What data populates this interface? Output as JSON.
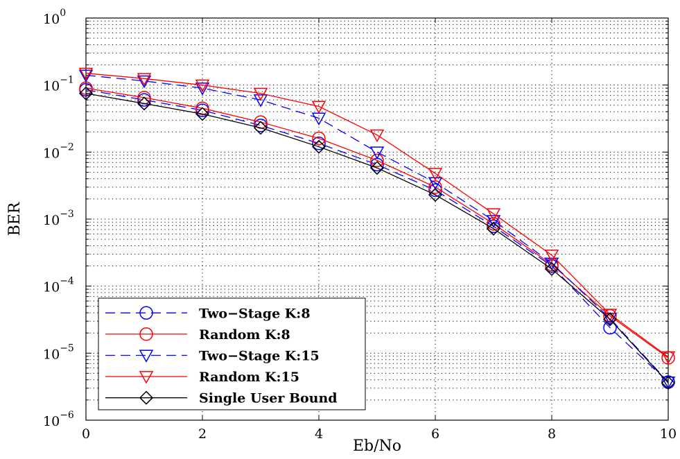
{
  "chart_data": {
    "type": "line",
    "xlabel": "Eb/No",
    "ylabel": "BER",
    "yscale": "log",
    "xlim": [
      0,
      10
    ],
    "ylim": [
      1e-06,
      1
    ],
    "x_ticks": [
      0,
      2,
      4,
      6,
      8,
      10
    ],
    "x_tick_labels": [
      "0",
      "2",
      "4",
      "6",
      "8",
      "10"
    ],
    "y_ticks": [
      {
        "value": 1,
        "base": "10",
        "exp": "0"
      },
      {
        "value": 0.1,
        "base": "10",
        "exp": "−1"
      },
      {
        "value": 0.01,
        "base": "10",
        "exp": "−2"
      },
      {
        "value": 0.001,
        "base": "10",
        "exp": "−3"
      },
      {
        "value": 0.0001,
        "base": "10",
        "exp": "−4"
      },
      {
        "value": 1e-05,
        "base": "10",
        "exp": "−5"
      },
      {
        "value": 1e-06,
        "base": "10",
        "exp": "−6"
      }
    ],
    "grid": true,
    "legend_position": "bottom-left",
    "x": [
      0,
      1,
      2,
      3,
      4,
      5,
      6,
      7,
      8,
      9,
      10
    ],
    "series": [
      {
        "name": "Two−Stage K:8",
        "color": "#0000ff",
        "dash": "dashed",
        "marker": "circle",
        "values": [
          0.085,
          0.06,
          0.042,
          0.025,
          0.0135,
          0.0065,
          0.0027,
          0.00078,
          0.0002,
          2.4e-05,
          3.7e-06
        ]
      },
      {
        "name": "Random  K:8",
        "color": "#ff0000",
        "dash": "solid",
        "marker": "circle",
        "values": [
          0.09,
          0.065,
          0.045,
          0.028,
          0.016,
          0.0075,
          0.003,
          0.00085,
          0.00021,
          3.6e-05,
          8.5e-06
        ]
      },
      {
        "name": "Two−Stage K:15",
        "color": "#0000ff",
        "dash": "dashed",
        "marker": "triangle-down",
        "values": [
          0.14,
          0.115,
          0.09,
          0.06,
          0.032,
          0.01,
          0.0035,
          0.00095,
          0.00022,
          3.3e-05,
          3.7e-06
        ]
      },
      {
        "name": "Random  K:15",
        "color": "#ff0000",
        "dash": "solid",
        "marker": "triangle-down",
        "values": [
          0.15,
          0.125,
          0.1,
          0.075,
          0.048,
          0.018,
          0.0048,
          0.0012,
          0.00029,
          3.8e-05,
          8.8e-06
        ]
      },
      {
        "name": "Single User Bound",
        "color": "#000000",
        "dash": "solid",
        "marker": "diamond",
        "values": [
          0.075,
          0.053,
          0.037,
          0.023,
          0.012,
          0.0058,
          0.0023,
          0.00072,
          0.00018,
          3.2e-05,
          3.6e-06
        ]
      }
    ]
  }
}
